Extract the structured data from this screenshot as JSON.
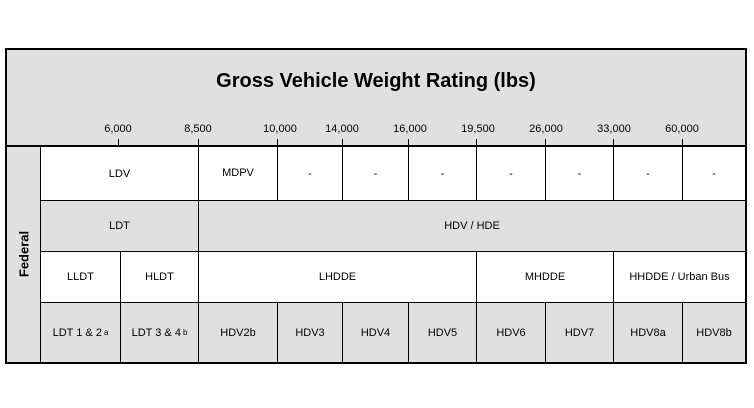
{
  "title": "Gross Vehicle Weight Rating (lbs)",
  "ticks": [
    "6,000",
    "8,500",
    "10,000",
    "14,000",
    "16,000",
    "19,500",
    "26,000",
    "33,000",
    "60,000"
  ],
  "side_label": "Federal",
  "row1": {
    "ldv": "LDV",
    "mdpv": "MDPV",
    "dash": "-"
  },
  "row2": {
    "ldt": "LDT",
    "hdv_hde": "HDV / HDE"
  },
  "row3": {
    "lldt": "LLDT",
    "hldt": "HLDT",
    "lhdde": "LHDDE",
    "mhdde": "MHDDE",
    "hhdde": "HHDDE / Urban Bus"
  },
  "row4": {
    "ldt12": "LDT 1 & 2",
    "ldt12_note": "a",
    "ldt34": "LDT 3 & 4",
    "ldt34_note": "b",
    "classes": [
      "HDV2b",
      "HDV3",
      "HDV4",
      "HDV5",
      "HDV6",
      "HDV7",
      "HDV8a",
      "HDV8b"
    ]
  },
  "colors": {
    "shade": "#e0e0e0",
    "border": "#000000"
  }
}
